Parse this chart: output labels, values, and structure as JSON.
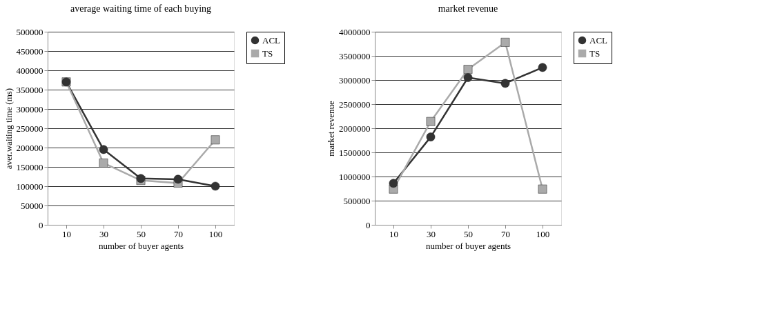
{
  "chart_data": [
    {
      "type": "line",
      "title": "average waiting time of each buying",
      "xlabel": "number of buyer agents",
      "ylabel": "aver.waiting time (ms)",
      "categories": [
        "10",
        "30",
        "50",
        "70",
        "100"
      ],
      "ylim": [
        0,
        500000
      ],
      "yticks": [
        0,
        50000,
        100000,
        150000,
        200000,
        250000,
        300000,
        350000,
        400000,
        450000,
        500000
      ],
      "grid": "y",
      "legend": "right",
      "series": [
        {
          "name": "ACL",
          "color": "#333333",
          "marker": "circle",
          "values": [
            370000,
            195000,
            120000,
            118000,
            100000
          ]
        },
        {
          "name": "TS",
          "color": "#aaaaaa",
          "marker": "square",
          "values": [
            370000,
            160000,
            115000,
            108000,
            220000
          ]
        }
      ]
    },
    {
      "type": "line",
      "title": "market revenue",
      "xlabel": "number of buyer agents",
      "ylabel": "market revenue",
      "categories": [
        "10",
        "30",
        "50",
        "70",
        "100"
      ],
      "ylim": [
        0,
        4000000
      ],
      "yticks": [
        0,
        500000,
        1000000,
        1500000,
        2000000,
        2500000,
        3000000,
        3500000,
        4000000
      ],
      "grid": "y",
      "legend": "right",
      "series": [
        {
          "name": "ACL",
          "color": "#333333",
          "marker": "circle",
          "values": [
            860000,
            1820000,
            3050000,
            2930000,
            3260000
          ]
        },
        {
          "name": "TS",
          "color": "#aaaaaa",
          "marker": "square",
          "values": [
            740000,
            2140000,
            3220000,
            3780000,
            740000
          ]
        }
      ]
    }
  ]
}
